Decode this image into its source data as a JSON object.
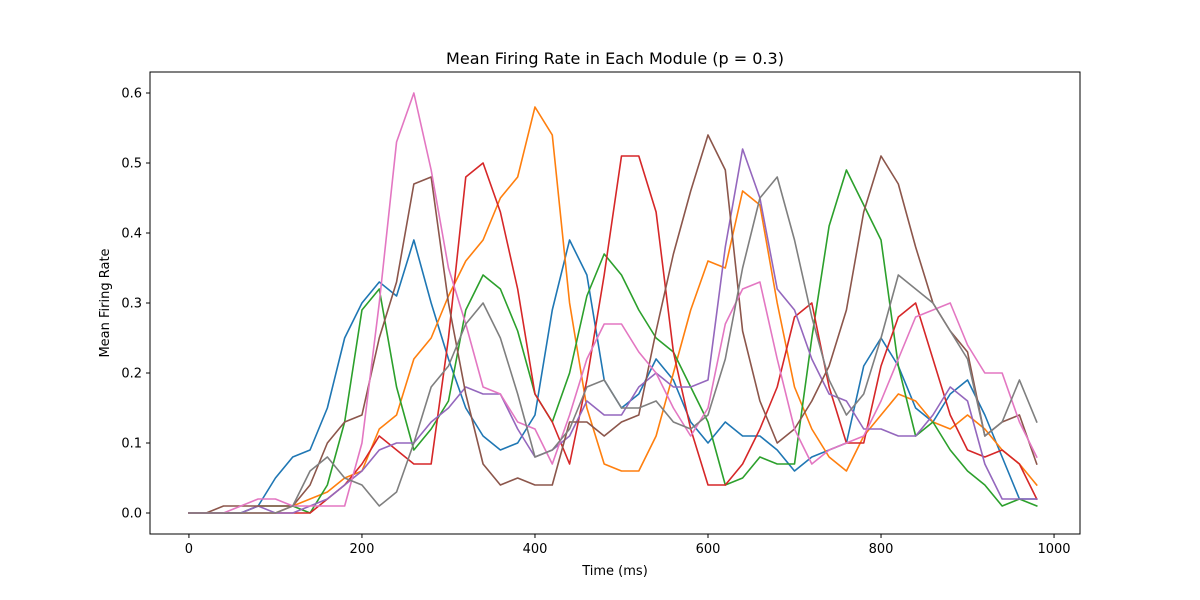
{
  "chart_data": {
    "type": "line",
    "title": "Mean Firing Rate in Each Module (p = 0.3)",
    "xlabel": "Time (ms)",
    "ylabel": "Mean Firing Rate",
    "xlim": [
      -45,
      1030
    ],
    "ylim": [
      -0.03,
      0.63
    ],
    "xticks": [
      0,
      200,
      400,
      600,
      800,
      1000
    ],
    "yticks": [
      0.0,
      0.1,
      0.2,
      0.3,
      0.4,
      0.5,
      0.6
    ],
    "ytick_labels": [
      "0.0",
      "0.1",
      "0.2",
      "0.3",
      "0.4",
      "0.5",
      "0.6"
    ],
    "grid": false,
    "x": [
      0,
      20,
      40,
      60,
      80,
      100,
      120,
      140,
      160,
      180,
      200,
      220,
      240,
      260,
      280,
      300,
      320,
      340,
      360,
      380,
      400,
      420,
      440,
      460,
      480,
      500,
      520,
      540,
      560,
      580,
      600,
      620,
      640,
      660,
      680,
      700,
      720,
      740,
      760,
      780,
      800,
      820,
      840,
      860,
      880,
      900,
      920,
      940,
      960,
      980
    ],
    "series": [
      {
        "color": "#1f77b4",
        "values": [
          0,
          0,
          0,
          0,
          0.01,
          0.05,
          0.08,
          0.09,
          0.15,
          0.25,
          0.3,
          0.33,
          0.31,
          0.39,
          0.3,
          0.22,
          0.15,
          0.11,
          0.09,
          0.1,
          0.14,
          0.29,
          0.39,
          0.34,
          0.19,
          0.15,
          0.17,
          0.22,
          0.19,
          0.13,
          0.1,
          0.13,
          0.11,
          0.11,
          0.09,
          0.06,
          0.08,
          0.09,
          0.1,
          0.21,
          0.25,
          0.21,
          0.15,
          0.13,
          0.17,
          0.19,
          0.14,
          0.08,
          0.02,
          0.02
        ]
      },
      {
        "color": "#ff7f0e",
        "values": [
          0,
          0,
          0,
          0,
          0,
          0,
          0.01,
          0.02,
          0.03,
          0.05,
          0.06,
          0.12,
          0.14,
          0.22,
          0.25,
          0.31,
          0.36,
          0.39,
          0.45,
          0.48,
          0.58,
          0.54,
          0.3,
          0.15,
          0.07,
          0.06,
          0.06,
          0.11,
          0.2,
          0.29,
          0.36,
          0.35,
          0.46,
          0.44,
          0.3,
          0.18,
          0.12,
          0.08,
          0.06,
          0.11,
          0.14,
          0.17,
          0.16,
          0.13,
          0.12,
          0.14,
          0.12,
          0.09,
          0.07,
          0.04
        ]
      },
      {
        "color": "#2ca02c",
        "values": [
          0,
          0,
          0,
          0,
          0.01,
          0.01,
          0.01,
          0,
          0.04,
          0.13,
          0.29,
          0.32,
          0.18,
          0.09,
          0.12,
          0.16,
          0.29,
          0.34,
          0.32,
          0.26,
          0.17,
          0.13,
          0.2,
          0.31,
          0.37,
          0.34,
          0.29,
          0.25,
          0.23,
          0.18,
          0.13,
          0.04,
          0.05,
          0.08,
          0.07,
          0.07,
          0.25,
          0.41,
          0.49,
          0.44,
          0.39,
          0.21,
          0.11,
          0.13,
          0.09,
          0.06,
          0.04,
          0.01,
          0.02,
          0.01
        ]
      },
      {
        "color": "#d62728",
        "values": [
          0,
          0,
          0,
          0,
          0,
          0,
          0,
          0,
          0.02,
          0.04,
          0.07,
          0.11,
          0.09,
          0.07,
          0.07,
          0.25,
          0.48,
          0.5,
          0.43,
          0.32,
          0.17,
          0.13,
          0.07,
          0.19,
          0.34,
          0.51,
          0.51,
          0.43,
          0.23,
          0.12,
          0.04,
          0.04,
          0.07,
          0.12,
          0.18,
          0.28,
          0.3,
          0.18,
          0.1,
          0.1,
          0.21,
          0.28,
          0.3,
          0.22,
          0.14,
          0.09,
          0.08,
          0.09,
          0.07,
          0.02
        ]
      },
      {
        "color": "#9467bd",
        "values": [
          0,
          0,
          0,
          0,
          0.01,
          0,
          0,
          0.01,
          0.02,
          0.04,
          0.06,
          0.09,
          0.1,
          0.1,
          0.13,
          0.15,
          0.18,
          0.17,
          0.17,
          0.12,
          0.08,
          0.09,
          0.11,
          0.16,
          0.14,
          0.14,
          0.18,
          0.2,
          0.18,
          0.18,
          0.19,
          0.38,
          0.52,
          0.45,
          0.32,
          0.29,
          0.22,
          0.17,
          0.16,
          0.12,
          0.12,
          0.11,
          0.11,
          0.14,
          0.18,
          0.16,
          0.07,
          0.02,
          0.02,
          0.02
        ]
      },
      {
        "color": "#8c564b",
        "values": [
          0,
          0,
          0.01,
          0.01,
          0.01,
          0.01,
          0.01,
          0.04,
          0.1,
          0.13,
          0.14,
          0.25,
          0.33,
          0.47,
          0.48,
          0.3,
          0.17,
          0.07,
          0.04,
          0.05,
          0.04,
          0.04,
          0.13,
          0.13,
          0.11,
          0.13,
          0.14,
          0.26,
          0.37,
          0.46,
          0.54,
          0.49,
          0.26,
          0.16,
          0.1,
          0.12,
          0.16,
          0.21,
          0.29,
          0.43,
          0.51,
          0.47,
          0.38,
          0.3,
          0.26,
          0.23,
          0.11,
          0.13,
          0.14,
          0.07
        ]
      },
      {
        "color": "#e377c2",
        "values": [
          0,
          0,
          0,
          0.01,
          0.02,
          0.02,
          0.01,
          0.01,
          0.01,
          0.01,
          0.1,
          0.3,
          0.53,
          0.6,
          0.49,
          0.35,
          0.27,
          0.18,
          0.17,
          0.13,
          0.12,
          0.07,
          0.14,
          0.22,
          0.27,
          0.27,
          0.23,
          0.2,
          0.15,
          0.11,
          0.15,
          0.27,
          0.32,
          0.33,
          0.22,
          0.12,
          0.07,
          0.09,
          0.1,
          0.11,
          0.16,
          0.22,
          0.28,
          0.29,
          0.3,
          0.24,
          0.2,
          0.2,
          0.13,
          0.08
        ]
      },
      {
        "color": "#7f7f7f",
        "values": [
          0,
          0,
          0,
          0,
          0,
          0,
          0.01,
          0.06,
          0.08,
          0.05,
          0.04,
          0.01,
          0.03,
          0.1,
          0.18,
          0.21,
          0.27,
          0.3,
          0.25,
          0.17,
          0.08,
          0.09,
          0.12,
          0.18,
          0.19,
          0.15,
          0.15,
          0.16,
          0.13,
          0.12,
          0.14,
          0.22,
          0.35,
          0.45,
          0.48,
          0.39,
          0.28,
          0.19,
          0.14,
          0.17,
          0.25,
          0.34,
          0.32,
          0.3,
          0.26,
          0.22,
          0.11,
          0.13,
          0.19,
          0.13
        ]
      }
    ]
  }
}
